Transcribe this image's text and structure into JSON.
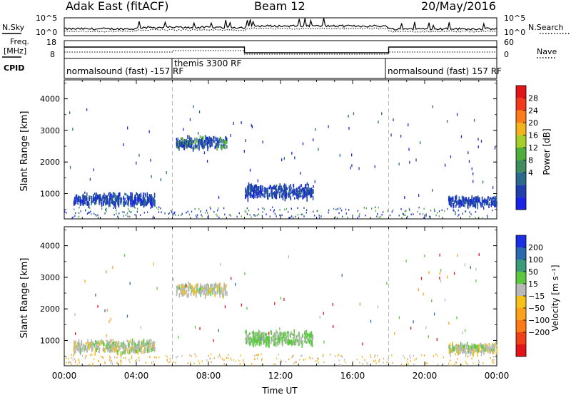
{
  "header": {
    "station": "Adak East (fitACF)",
    "beam": "Beam 12",
    "date": "20/May/2016"
  },
  "panels": {
    "nsky_label": "N.Sky",
    "nsky_ticks": [
      "10^5",
      "10^0"
    ],
    "nsearch_label": "N.Search",
    "nsearch_ticks": [
      "10^5",
      "10^0"
    ],
    "freq_label_1": "Freq.",
    "freq_label_2": "[MHz]",
    "freq_ticks": [
      "18",
      "8"
    ],
    "nave_label": "Nave",
    "nave_ticks": [
      "60",
      "0"
    ],
    "cpid_label": "CPID",
    "cpid_segments": [
      {
        "label": "normalsound (fast) -157 RF"
      },
      {
        "label": "themis 3300 RF"
      },
      {
        "label": "normalsound (fast) 157 RF"
      }
    ]
  },
  "chart_data": [
    {
      "type": "heatmap",
      "xlabel": "",
      "ylabel": "Slant Range [km]",
      "ylim": [
        200,
        4600
      ],
      "y_ticks": [
        "4000",
        "3000",
        "2000",
        "1000"
      ],
      "colorbar": {
        "label": "Power [dB]",
        "ticks": [
          "28",
          "24",
          "20",
          "16",
          "12",
          "8",
          "4"
        ],
        "colors": [
          "#1a22e6",
          "#1f3fae",
          "#2b6a8c",
          "#3f8c5e",
          "#4fae3a",
          "#a6cf2a",
          "#f2b41a",
          "#ff7a18",
          "#f23a1a",
          "#e2141a"
        ]
      },
      "echo_regions": [
        {
          "t0": 0.5,
          "t1": 5.0,
          "r0": 600,
          "r1": 1000,
          "level": "low"
        },
        {
          "t0": 6.2,
          "t1": 9.0,
          "r0": 2400,
          "r1": 2800,
          "level": "mixed"
        },
        {
          "t0": 10.0,
          "t1": 13.8,
          "r0": 800,
          "r1": 1300,
          "level": "low"
        },
        {
          "t0": 21.3,
          "t1": 24.0,
          "r0": 600,
          "r1": 900,
          "level": "low"
        }
      ]
    },
    {
      "type": "heatmap",
      "xlabel": "Time UT",
      "ylabel": "Slant Range [km]",
      "ylim": [
        200,
        4600
      ],
      "y_ticks": [
        "4000",
        "3000",
        "2000",
        "1000"
      ],
      "x_ticks": [
        "00:00",
        "04:00",
        "08:00",
        "12:00",
        "16:00",
        "20:00",
        "00:00"
      ],
      "colorbar": {
        "label": "Velocity [m s⁻¹]",
        "ticks": [
          "200",
          "100",
          "50",
          "15",
          "−15",
          "−50",
          "−100",
          "−200"
        ],
        "colors": [
          "#1a2ee6",
          "#2a6ab0",
          "#3a9a7a",
          "#5bc840",
          "#b9b9b9",
          "#f4c21a",
          "#ffa21a",
          "#ff7a14",
          "#f04018",
          "#e2141a"
        ]
      },
      "echo_regions": [
        {
          "t0": 0.5,
          "t1": 5.0,
          "r0": 600,
          "r1": 1000,
          "level": "grey"
        },
        {
          "t0": 6.2,
          "t1": 9.0,
          "r0": 2400,
          "r1": 2800,
          "level": "grey"
        },
        {
          "t0": 10.0,
          "t1": 13.8,
          "r0": 800,
          "r1": 1300,
          "level": "green"
        },
        {
          "t0": 21.3,
          "t1": 24.0,
          "r0": 600,
          "r1": 900,
          "level": "grey"
        }
      ]
    }
  ],
  "colors": {
    "marker": "#b8b8b8"
  }
}
